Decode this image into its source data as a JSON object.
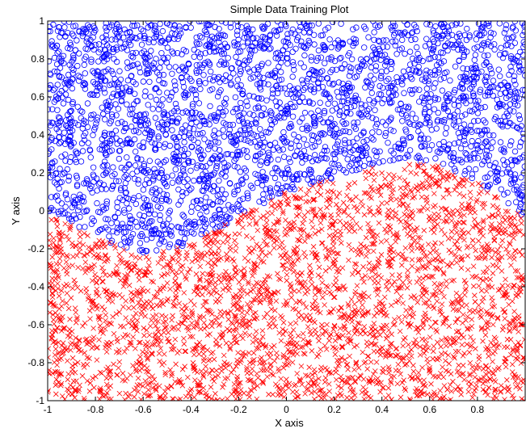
{
  "chart_data": {
    "type": "scatter",
    "title": "Simple Data Training Plot",
    "xlabel": "X axis",
    "ylabel": "Y axis",
    "xlim": [
      -1,
      1
    ],
    "ylim": [
      -1,
      1
    ],
    "xticks": [
      -1,
      -0.8,
      -0.6,
      -0.4,
      -0.2,
      0,
      0.2,
      0.4,
      0.6,
      0.8
    ],
    "xtick_labels": [
      "-1",
      "-0.8",
      "-0.6",
      "-0.4",
      "-0.2",
      "0",
      "0.2",
      "0.4",
      "0.6",
      "0.8"
    ],
    "yticks": [
      -1,
      -0.8,
      -0.6,
      -0.4,
      -0.2,
      0,
      0.2,
      0.4,
      0.6,
      0.8,
      1
    ],
    "ytick_labels": [
      "-1",
      "-0.8",
      "-0.6",
      "-0.4",
      "-0.2",
      "0",
      "0.2",
      "0.4",
      "0.6",
      "0.8",
      "1"
    ],
    "grid": false,
    "boundary": {
      "description_points_x": [
        -1,
        -0.8,
        -0.6,
        -0.4,
        -0.2,
        0,
        0.2,
        0.4,
        0.6,
        0.8,
        1
      ],
      "description_points_y": [
        0,
        -0.14,
        -0.23,
        -0.18,
        -0.03,
        0.1,
        0.17,
        0.24,
        0.26,
        0.15,
        -0.04
      ]
    },
    "series": [
      {
        "marker": "circle",
        "color": "#0000ff",
        "region": "above boundary",
        "approx_count": 3000
      },
      {
        "marker": "x",
        "color": "#ff0000",
        "region": "below boundary",
        "approx_count": 3000
      }
    ]
  }
}
